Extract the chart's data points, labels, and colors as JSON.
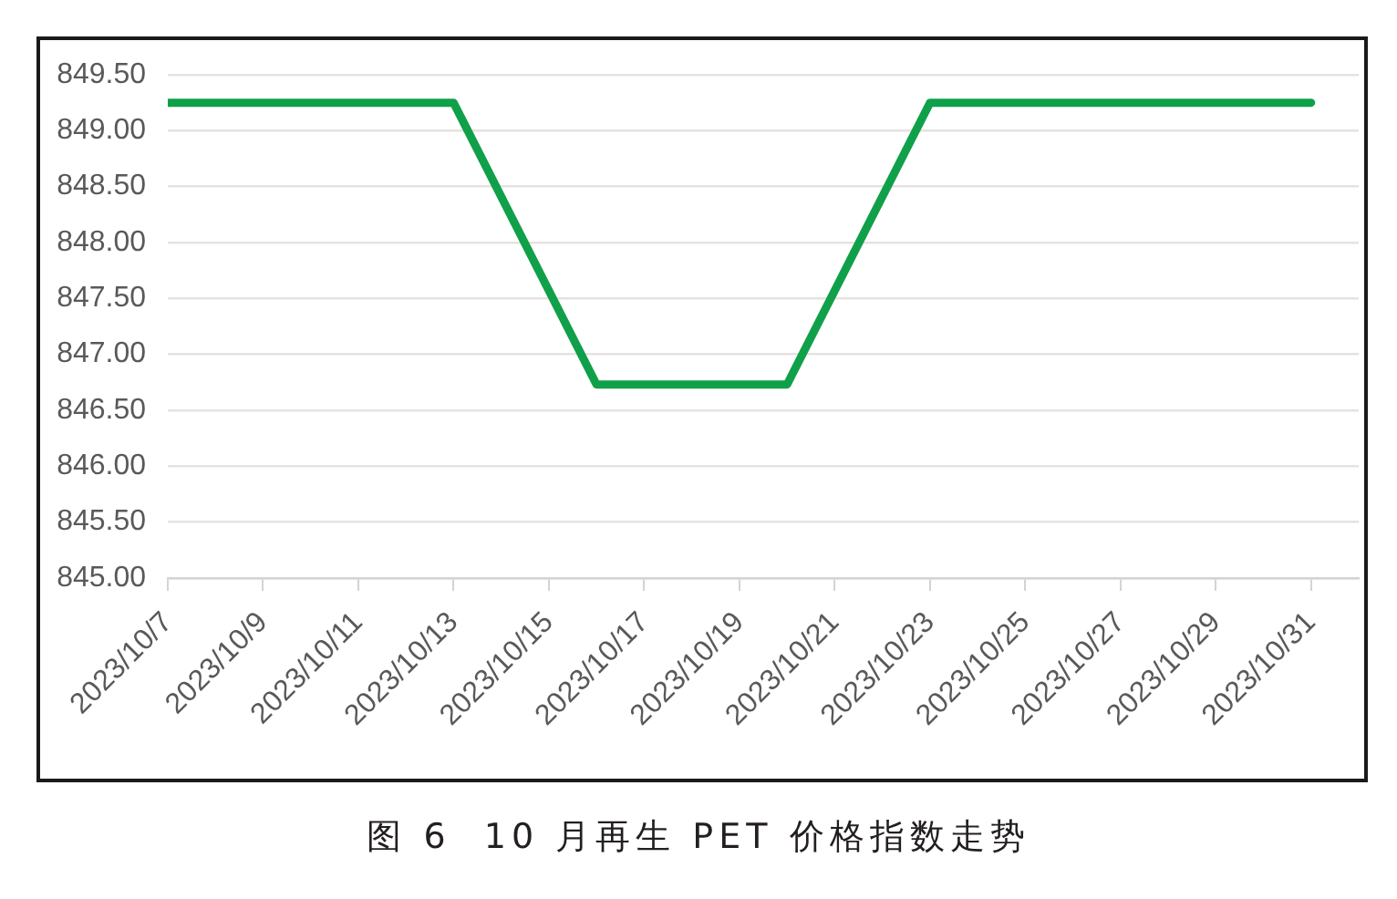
{
  "chart_data": {
    "type": "line",
    "title": "图 6  10 月再生 PET 价格指数走势",
    "x": [
      "2023-10-07",
      "2023-10-08",
      "2023-10-09",
      "2023-10-10",
      "2023-10-11",
      "2023-10-12",
      "2023-10-13",
      "2023-10-16",
      "2023-10-17",
      "2023-10-18",
      "2023-10-19",
      "2023-10-20",
      "2023-10-23",
      "2023-10-24",
      "2023-10-25",
      "2023-10-26",
      "2023-10-27",
      "2023-10-30",
      "2023-10-31"
    ],
    "series": [
      {
        "color": "#10a04a",
        "values": [
          849.25,
          849.25,
          849.25,
          849.25,
          849.25,
          849.25,
          849.25,
          846.73,
          846.73,
          846.73,
          846.73,
          846.73,
          849.25,
          849.25,
          849.25,
          849.25,
          849.25,
          849.25,
          849.25
        ]
      }
    ],
    "xlim": [
      "2023-10-07",
      "2023-11-01"
    ],
    "xticks": [
      {
        "value": "2023-10-07",
        "label": "2023/10/7"
      },
      {
        "value": "2023-10-09",
        "label": "2023/10/9"
      },
      {
        "value": "2023-10-11",
        "label": "2023/10/11"
      },
      {
        "value": "2023-10-13",
        "label": "2023/10/13"
      },
      {
        "value": "2023-10-15",
        "label": "2023/10/15"
      },
      {
        "value": "2023-10-17",
        "label": "2023/10/17"
      },
      {
        "value": "2023-10-19",
        "label": "2023/10/19"
      },
      {
        "value": "2023-10-21",
        "label": "2023/10/21"
      },
      {
        "value": "2023-10-23",
        "label": "2023/10/23"
      },
      {
        "value": "2023-10-25",
        "label": "2023/10/25"
      },
      {
        "value": "2023-10-27",
        "label": "2023/10/27"
      },
      {
        "value": "2023-10-29",
        "label": "2023/10/29"
      },
      {
        "value": "2023-10-31",
        "label": "2023/10/31"
      }
    ],
    "ylim": [
      845,
      849.5
    ],
    "yticks": [
      {
        "value": 845,
        "label": "845.00"
      },
      {
        "value": 845.5,
        "label": "845.50"
      },
      {
        "value": 846,
        "label": "846.00"
      },
      {
        "value": 846.5,
        "label": "846.50"
      },
      {
        "value": 847,
        "label": "847.00"
      },
      {
        "value": 847.5,
        "label": "847.50"
      },
      {
        "value": 848,
        "label": "848.00"
      },
      {
        "value": 848.5,
        "label": "848.50"
      },
      {
        "value": 849,
        "label": "849.00"
      },
      {
        "value": 849.5,
        "label": "849.50"
      }
    ],
    "grid": "y",
    "legend": false,
    "marker": "none",
    "line_style": "solid"
  }
}
